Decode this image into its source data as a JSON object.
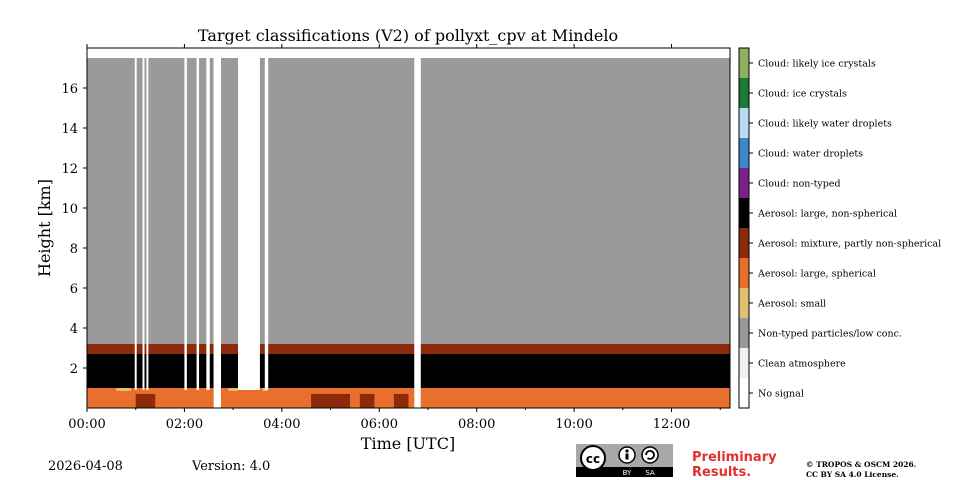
{
  "chart_data": {
    "type": "heatmap",
    "title": "Target classifications (V2) of pollyxt_cpv at Mindelo",
    "xlabel": "Time [UTC]",
    "ylabel": "Height [km]",
    "xlim": [
      0,
      13.2
    ],
    "ylim": [
      0,
      18
    ],
    "x_ticks": [
      "00:00",
      "02:00",
      "04:00",
      "06:00",
      "08:00",
      "10:00",
      "12:00"
    ],
    "y_ticks": [
      "2",
      "4",
      "6",
      "8",
      "10",
      "12",
      "14",
      "16"
    ],
    "legend": [
      {
        "label": "Cloud: likely ice crystals",
        "color": "#8fb060"
      },
      {
        "label": "Cloud: ice crystals",
        "color": "#1a7a36"
      },
      {
        "label": "Cloud: likely water droplets",
        "color": "#b8dcf2"
      },
      {
        "label": "Cloud: water droplets",
        "color": "#3a88c8"
      },
      {
        "label": "Cloud: non-typed",
        "color": "#7c2088"
      },
      {
        "label": "Aerosol: large, non-spherical",
        "color": "#000000"
      },
      {
        "label": "Aerosol: mixture, partly non-spherical",
        "color": "#8e2a0c"
      },
      {
        "label": "Aerosol: large, spherical",
        "color": "#e8702c"
      },
      {
        "label": "Aerosol: small",
        "color": "#e0c070"
      },
      {
        "label": "Non-typed particles/low conc.",
        "color": "#9a9a9a"
      },
      {
        "label": "Clean atmosphere",
        "color": "#f2f2f2"
      },
      {
        "label": "No signal",
        "color": "#ffffff"
      }
    ],
    "layers": [
      {
        "class": "Aerosol: large, spherical",
        "from_km": 0,
        "to_km": 1.0
      },
      {
        "class": "Aerosol: large, non-spherical",
        "from_km": 1.0,
        "to_km": 3.0
      },
      {
        "class": "Aerosol: mixture, partly non-spherical",
        "from_km": 2.6,
        "to_km": 3.2
      },
      {
        "class": "Non-typed particles/low conc.",
        "from_km": 3.2,
        "to_km": 17.5
      }
    ],
    "gaps_hours": [
      [
        0.98,
        1.02
      ],
      [
        1.14,
        1.18
      ],
      [
        1.22,
        1.26
      ],
      [
        2.0,
        2.05
      ],
      [
        2.25,
        2.3
      ],
      [
        2.45,
        2.52
      ],
      [
        2.6,
        2.75
      ],
      [
        3.1,
        3.55
      ],
      [
        3.65,
        3.72
      ],
      [
        6.72,
        6.85
      ]
    ]
  },
  "footer": {
    "date": "2026-04-08",
    "version": "Version: 4.0",
    "license_badge": {
      "by": "BY",
      "sa": "SA"
    },
    "preliminary_line1": "Preliminary",
    "preliminary_line2": "Results.",
    "copyright_line1": "© TROPOS & OSCM 2026.",
    "copyright_line2": "CC BY SA 4.0 License."
  },
  "colors": {
    "preliminary": "#e03030"
  }
}
